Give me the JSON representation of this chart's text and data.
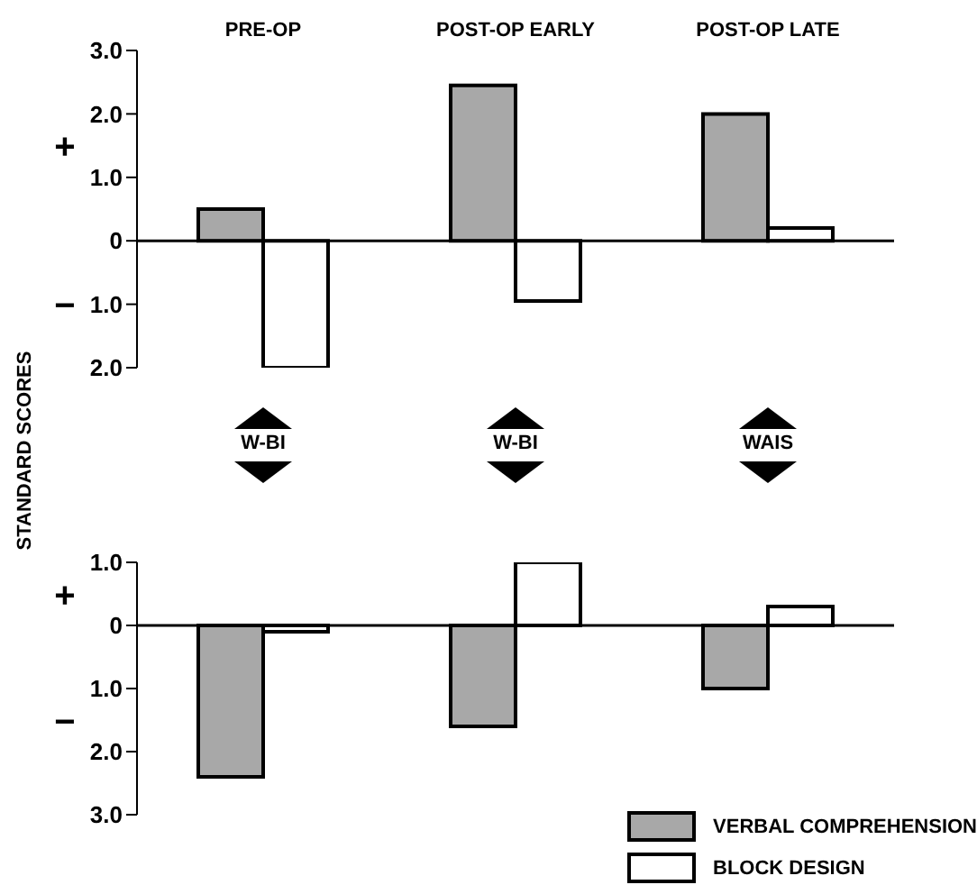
{
  "chart_data": [
    {
      "type": "bar",
      "ylabel": "STANDARD SCORES",
      "categories": [
        "PRE-OP",
        "POST-OP EARLY",
        "POST-OP LATE"
      ],
      "series": [
        {
          "color": "#a8a8a8",
          "values": [
            0.5,
            2.45,
            2.0
          ]
        },
        {
          "color": "#ffffff",
          "values": [
            -2.0,
            -0.95,
            0.2
          ]
        }
      ],
      "ylim": [
        -2,
        3
      ],
      "yticks": [
        {
          "value": -2,
          "label": "2.0"
        },
        {
          "value": -1,
          "label": "1.0"
        },
        0,
        {
          "value": 1,
          "label": "1.0"
        },
        {
          "value": 2,
          "label": "2.0"
        },
        {
          "value": 3,
          "label": "3.0"
        }
      ],
      "annotations": [
        "+",
        "−"
      ],
      "ref_lines": [
        {
          "axis": "y",
          "value": 0,
          "color": "#000000"
        }
      ],
      "legend": false
    },
    {
      "type": "bar",
      "categories": [
        null,
        null,
        null
      ],
      "series": [
        {
          "name": "VERBAL COMPREHENSION",
          "color": "#a8a8a8",
          "values": [
            -2.4,
            -1.6,
            -1.0
          ]
        },
        {
          "name": "BLOCK DESIGN",
          "color": "#ffffff",
          "values": [
            -0.1,
            1.0,
            0.3
          ]
        }
      ],
      "ylim": [
        -3,
        1
      ],
      "yticks": [
        {
          "value": -3,
          "label": "3.0"
        },
        {
          "value": -2,
          "label": "2.0"
        },
        {
          "value": -1,
          "label": "1.0"
        },
        0,
        {
          "value": 1,
          "label": "1.0"
        }
      ],
      "annotations": [
        "W-BI",
        "W-BI",
        "WAIS",
        "+",
        "−"
      ],
      "ref_lines": [
        {
          "axis": "y",
          "value": 0,
          "color": "#000000"
        }
      ],
      "legend": "bottom right"
    }
  ]
}
